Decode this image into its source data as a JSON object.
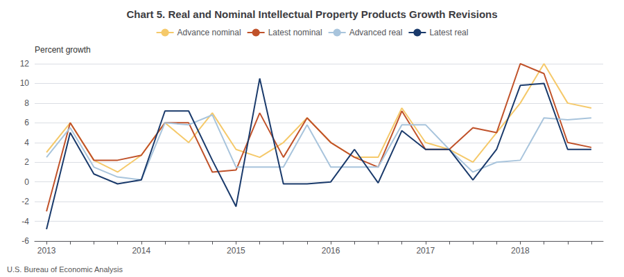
{
  "chart_data": {
    "type": "line",
    "title": "Chart 5. Real and Nominal Intellectual Property Products Growth Revisions",
    "y_label": "Percent growth",
    "source": "U.S. Bureau of Economic Analysis",
    "categories": [
      "2013",
      null,
      null,
      null,
      "2014",
      null,
      null,
      null,
      "2015",
      null,
      null,
      null,
      "2016",
      null,
      null,
      null,
      "2017",
      null,
      null,
      null,
      "2018",
      null,
      null,
      null
    ],
    "series": [
      {
        "name": "Advance nominal",
        "color": "#F5C96A",
        "values": [
          3.0,
          6.0,
          2.2,
          1.0,
          2.7,
          6.0,
          4.0,
          7.0,
          3.3,
          2.5,
          4.0,
          6.5,
          4.0,
          2.5,
          2.5,
          7.5,
          4.0,
          3.3,
          2.0,
          5.0,
          8.0,
          12.0,
          8.0,
          7.5
        ]
      },
      {
        "name": "Latest nominal",
        "color": "#C0522A",
        "values": [
          -3.0,
          6.0,
          2.2,
          2.2,
          2.7,
          6.0,
          6.0,
          1.0,
          1.2,
          7.0,
          2.5,
          6.5,
          4.0,
          2.5,
          1.5,
          7.2,
          3.3,
          3.3,
          5.5,
          5.0,
          12.0,
          11.0,
          4.0,
          3.5
        ]
      },
      {
        "name": "Advanced real",
        "color": "#A8C4DC",
        "values": [
          2.5,
          5.5,
          1.5,
          0.5,
          0.2,
          6.0,
          5.8,
          6.8,
          1.5,
          1.5,
          1.5,
          5.8,
          1.5,
          1.5,
          1.5,
          5.8,
          5.8,
          3.3,
          1.0,
          2.0,
          2.2,
          6.5,
          6.3,
          6.5
        ]
      },
      {
        "name": "Latest real",
        "color": "#1A3A6B",
        "values": [
          -4.8,
          5.0,
          0.8,
          -0.2,
          0.2,
          7.2,
          7.2,
          2.2,
          -2.5,
          10.5,
          -0.2,
          -0.2,
          0.0,
          3.3,
          -0.1,
          5.2,
          3.3,
          3.3,
          0.2,
          3.3,
          9.8,
          10.0,
          3.3,
          3.3
        ]
      }
    ],
    "ylim": [
      -6,
      12
    ],
    "yticks": [
      -6,
      -4,
      -2,
      0,
      2,
      4,
      6,
      8,
      10,
      12
    ],
    "grid": true,
    "legend": "top"
  }
}
